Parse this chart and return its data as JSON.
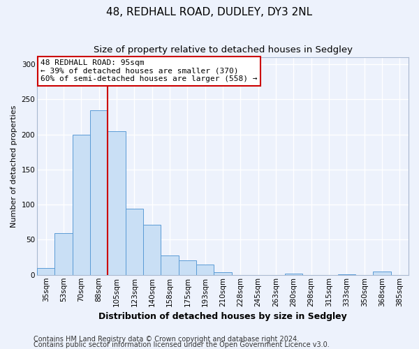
{
  "title": "48, REDHALL ROAD, DUDLEY, DY3 2NL",
  "subtitle": "Size of property relative to detached houses in Sedgley",
  "xlabel": "Distribution of detached houses by size in Sedgley",
  "ylabel": "Number of detached properties",
  "categories": [
    "35sqm",
    "53sqm",
    "70sqm",
    "88sqm",
    "105sqm",
    "123sqm",
    "140sqm",
    "158sqm",
    "175sqm",
    "193sqm",
    "210sqm",
    "228sqm",
    "245sqm",
    "263sqm",
    "280sqm",
    "298sqm",
    "315sqm",
    "333sqm",
    "350sqm",
    "368sqm",
    "385sqm"
  ],
  "values": [
    10,
    59,
    200,
    234,
    205,
    94,
    71,
    28,
    21,
    15,
    4,
    0,
    0,
    0,
    2,
    0,
    0,
    1,
    0,
    5,
    0
  ],
  "bar_color": "#c9dff5",
  "bar_edge_color": "#5b9bd5",
  "vline_x_index": 3.5,
  "annotation_line1": "48 REDHALL ROAD: 95sqm",
  "annotation_line2": "← 39% of detached houses are smaller (370)",
  "annotation_line3": "60% of semi-detached houses are larger (558) →",
  "annotation_box_facecolor": "#ffffff",
  "annotation_box_edgecolor": "#cc0000",
  "vline_color": "#cc0000",
  "ylim_max": 310,
  "yticks": [
    0,
    50,
    100,
    150,
    200,
    250,
    300
  ],
  "footer1": "Contains HM Land Registry data © Crown copyright and database right 2024.",
  "footer2": "Contains public sector information licensed under the Open Government Licence v3.0.",
  "bg_color": "#edf2fc",
  "grid_color": "#ffffff",
  "title_fontsize": 11,
  "subtitle_fontsize": 9.5,
  "tick_fontsize": 7.5,
  "ylabel_fontsize": 8,
  "xlabel_fontsize": 9,
  "footer_fontsize": 7,
  "annotation_fontsize": 8
}
